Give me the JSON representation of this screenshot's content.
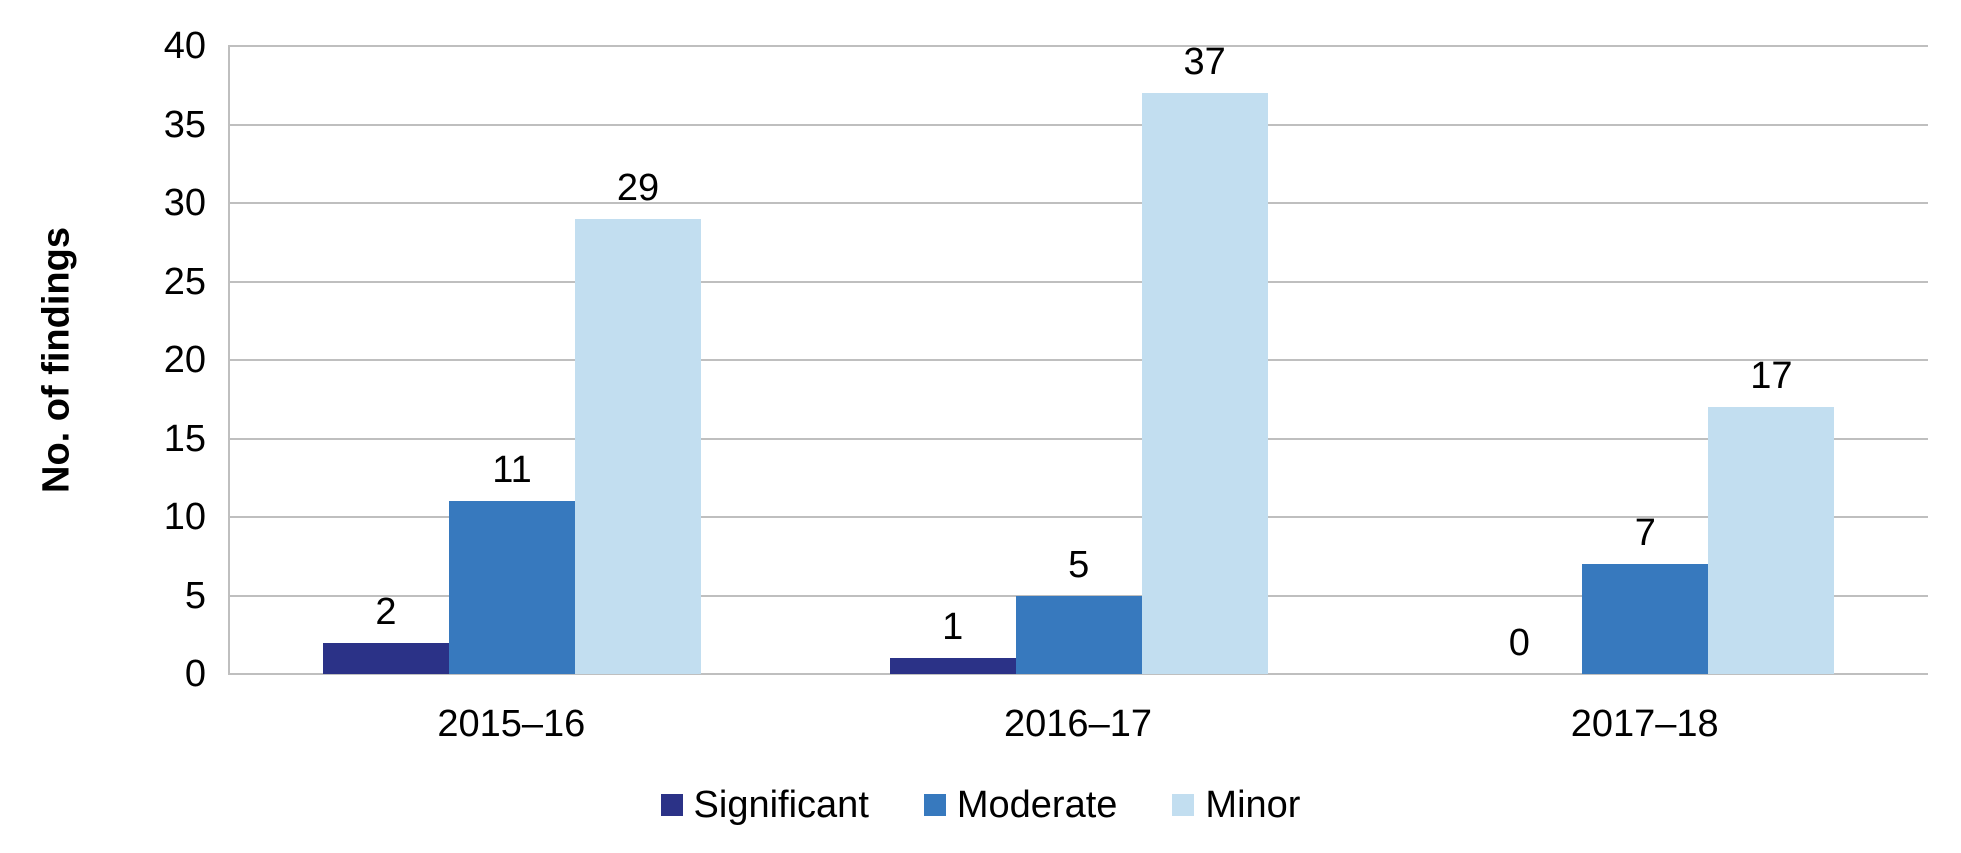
{
  "chart_data": {
    "type": "bar",
    "title": "",
    "categories": [
      "2015–16",
      "2016–17",
      "2017–18"
    ],
    "series": [
      {
        "name": "Significant",
        "values": [
          2,
          1,
          0
        ],
        "color": "#2B3287"
      },
      {
        "name": "Moderate",
        "values": [
          11,
          5,
          7
        ],
        "color": "#3779BE"
      },
      {
        "name": "Minor",
        "values": [
          29,
          37,
          17
        ],
        "color": "#C2DEF0"
      }
    ],
    "xlabel": "",
    "ylabel": "No. of findings",
    "ylim": [
      0,
      40
    ],
    "yticks": [
      0,
      5,
      10,
      15,
      20,
      25,
      30,
      35,
      40
    ],
    "bar_value_labels": true,
    "grid": true,
    "legend_position": "bottom",
    "colors": {
      "gridline": "#BFBFBF",
      "axis_line": "#BFBFBF",
      "text": "#000000",
      "background": "#FFFFFF"
    }
  }
}
